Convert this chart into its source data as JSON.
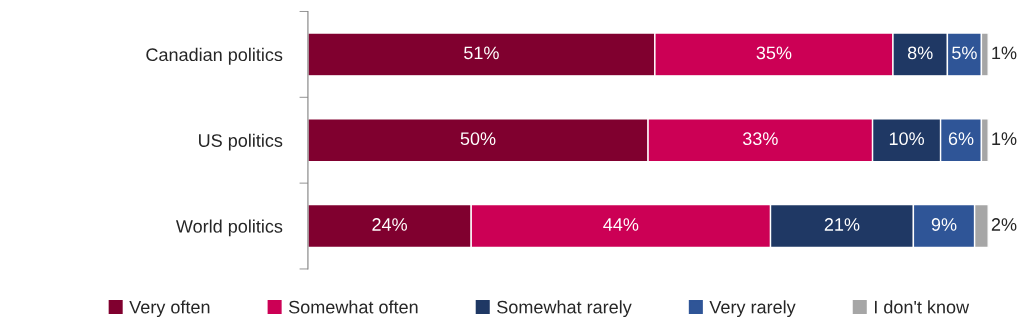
{
  "chart_data": {
    "type": "bar",
    "orientation": "horizontal",
    "stacked": true,
    "categories": [
      "Canadian politics",
      "US politics",
      "World politics"
    ],
    "series": [
      {
        "name": "Very often",
        "color": "#80002f",
        "values": [
          51,
          50,
          24
        ],
        "value_labels": [
          "51%",
          "50%",
          "24%"
        ]
      },
      {
        "name": "Somewhat often",
        "color": "#cc0055",
        "values": [
          35,
          33,
          44
        ],
        "value_labels": [
          "35%",
          "33%",
          "44%"
        ]
      },
      {
        "name": "Somewhat rarely",
        "color": "#1f3864",
        "values": [
          8,
          10,
          21
        ],
        "value_labels": [
          "8%",
          "10%",
          "21%"
        ]
      },
      {
        "name": "Very rarely",
        "color": "#2f5597",
        "values": [
          5,
          6,
          9
        ],
        "value_labels": [
          "5%",
          "6%",
          "9%"
        ]
      },
      {
        "name": "I don't know",
        "color": "#a6a6a6",
        "values": [
          1,
          1,
          2
        ],
        "value_labels": [
          "1%",
          "1%",
          "2%"
        ]
      }
    ],
    "legend": "bottom",
    "grid": false,
    "tick_labels": "y"
  }
}
